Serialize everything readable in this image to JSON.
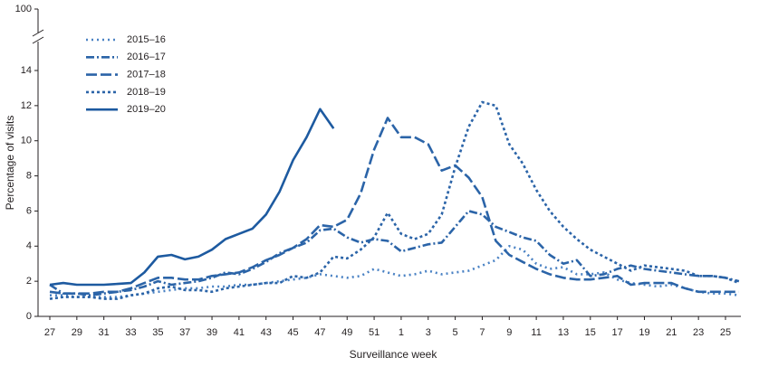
{
  "chart_data": {
    "type": "line",
    "x_label": "Surveillance week",
    "y_label": "Percentage of visits",
    "categories": [
      "27",
      null,
      "29",
      null,
      "31",
      null,
      "33",
      null,
      "35",
      null,
      "37",
      null,
      "39",
      null,
      "41",
      null,
      "43",
      null,
      "45",
      null,
      "47",
      null,
      "49",
      null,
      "51",
      null,
      "1",
      null,
      "3",
      null,
      "5",
      null,
      "7",
      null,
      "9",
      null,
      "11",
      null,
      "13",
      null,
      "15",
      null,
      "17",
      null,
      "19",
      null,
      "21",
      null,
      "23",
      null,
      "25",
      null
    ],
    "ylim": [
      0,
      100
    ],
    "axis_break": [
      14,
      100
    ],
    "yticks": [
      0,
      2,
      4,
      6,
      8,
      10,
      12,
      14,
      100
    ],
    "legend": "upper left",
    "series": [
      {
        "name": "2015–16",
        "color": "#4a82c4",
        "dash": "2,4",
        "values": [
          1.2,
          1.2,
          1.1,
          1.1,
          1.1,
          1.1,
          1.2,
          1.3,
          1.4,
          1.5,
          1.6,
          1.6,
          1.7,
          1.7,
          1.8,
          1.8,
          1.9,
          2.0,
          2.1,
          2.2,
          2.4,
          2.3,
          2.2,
          2.3,
          2.7,
          2.5,
          2.3,
          2.4,
          2.6,
          2.4,
          2.5,
          2.6,
          2.9,
          3.2,
          4.0,
          3.8,
          3.0,
          2.7,
          2.8,
          2.4,
          2.4,
          2.5,
          2.1,
          1.9,
          1.8,
          1.7,
          1.8,
          1.6,
          1.4,
          1.3,
          1.3,
          1.2
        ]
      },
      {
        "name": "2016–17",
        "color": "#2b64a8",
        "dash": "9,3,2,3",
        "values": [
          1.8,
          1.3,
          1.3,
          1.2,
          1.3,
          1.4,
          1.5,
          1.7,
          2.0,
          1.8,
          1.9,
          2.0,
          2.2,
          2.5,
          2.4,
          2.7,
          3.1,
          3.6,
          3.9,
          4.2,
          4.9,
          5.0,
          4.5,
          4.2,
          4.4,
          4.3,
          3.7,
          3.9,
          4.1,
          4.2,
          5.1,
          6.0,
          5.8,
          5.1,
          4.8,
          4.5,
          4.3,
          3.5,
          3.0,
          3.2,
          2.3,
          2.4,
          2.7,
          2.9,
          2.7,
          2.6,
          2.5,
          2.4,
          2.3,
          2.3,
          2.2,
          2.0
        ]
      },
      {
        "name": "2017–18",
        "color": "#2b64a8",
        "dash": "12,4",
        "values": [
          1.4,
          1.3,
          1.3,
          1.3,
          1.4,
          1.4,
          1.6,
          1.9,
          2.2,
          2.2,
          2.1,
          2.1,
          2.3,
          2.4,
          2.5,
          2.8,
          3.2,
          3.5,
          3.9,
          4.4,
          5.2,
          5.1,
          5.5,
          7.0,
          9.5,
          11.3,
          10.2,
          10.2,
          9.8,
          8.3,
          8.6,
          7.9,
          6.8,
          4.3,
          3.5,
          3.1,
          2.7,
          2.4,
          2.2,
          2.1,
          2.1,
          2.2,
          2.3,
          1.8,
          1.9,
          1.9,
          1.9,
          1.6,
          1.4,
          1.4,
          1.4,
          1.4
        ]
      },
      {
        "name": "2018–19",
        "color": "#2b64a8",
        "dash": "3,3",
        "values": [
          1.0,
          1.1,
          1.1,
          1.1,
          1.0,
          1.0,
          1.2,
          1.3,
          1.6,
          1.7,
          1.5,
          1.5,
          1.4,
          1.6,
          1.7,
          1.8,
          1.9,
          1.9,
          2.3,
          2.2,
          2.5,
          3.4,
          3.3,
          3.8,
          4.5,
          5.9,
          4.7,
          4.4,
          4.7,
          5.8,
          8.5,
          10.8,
          12.2,
          12.0,
          9.8,
          8.7,
          7.2,
          6.0,
          5.1,
          4.4,
          3.8,
          3.4,
          3.0,
          2.6,
          2.9,
          2.8,
          2.7,
          2.6,
          2.3,
          2.3,
          2.2,
          1.9
        ]
      },
      {
        "name": "2019–20",
        "color": "#1d5aa0",
        "dash": "",
        "values": [
          1.8,
          1.9,
          1.8,
          1.8,
          1.8,
          1.85,
          1.9,
          2.5,
          3.4,
          3.5,
          3.25,
          3.4,
          3.8,
          4.4,
          4.7,
          5.0,
          5.8,
          7.1,
          8.9,
          10.2,
          11.8,
          10.7,
          null,
          null,
          null,
          null,
          null,
          null,
          null,
          null,
          null,
          null,
          null,
          null,
          null,
          null,
          null,
          null,
          null,
          null,
          null,
          null,
          null,
          null,
          null,
          null,
          null,
          null,
          null,
          null,
          null,
          null
        ]
      }
    ]
  }
}
